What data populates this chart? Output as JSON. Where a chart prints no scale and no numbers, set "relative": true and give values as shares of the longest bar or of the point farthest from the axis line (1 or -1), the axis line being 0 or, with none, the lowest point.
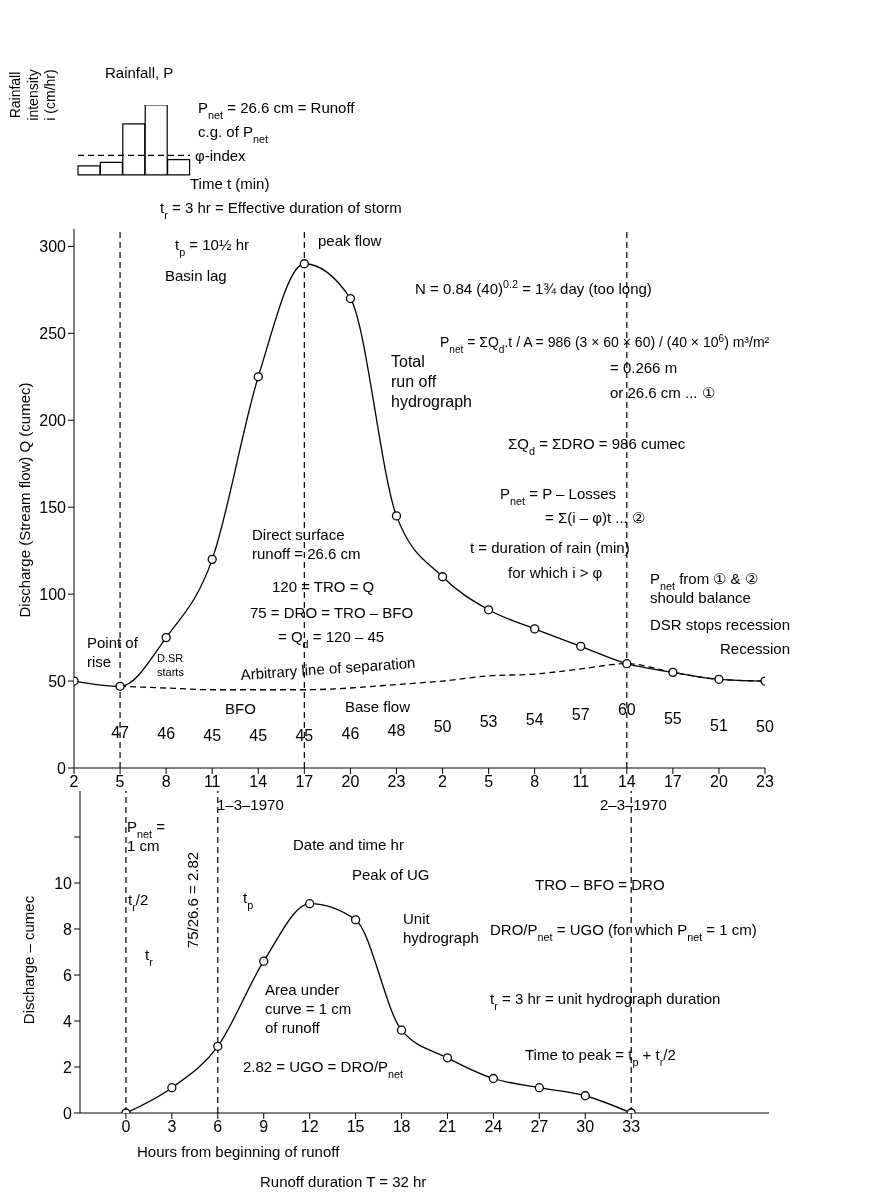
{
  "chart_data": [
    {
      "type": "bar",
      "relative": true,
      "xlabel": "Time t (min)",
      "ylabel": "Rainfall intensity i (cm/hr)",
      "categories": [
        null,
        null,
        null,
        null,
        null
      ],
      "values": [
        0.13,
        0.18,
        0.73,
        1,
        0.22
      ],
      "color": "#ffffff",
      "ref_lines": [
        {
          "axis": "y",
          "value": 0.28,
          "label": "φ-index",
          "line_style": "dashed"
        }
      ],
      "annotations": [
        "Rainfall, P",
        "P$_{net}$ = 26.6 cm = Runoff",
        "c.g. of P$_{net}$"
      ]
    },
    {
      "type": "line",
      "xlabel": "Date and time hr",
      "ylabel": "Discharge (Stream flow) Q (cumec)",
      "xlim": [
        "1970-03-01T02:00",
        "1970-03-02T23:00"
      ],
      "ylim": [
        0,
        310
      ],
      "xticks": [
        {
          "value": "1970-03-01T02:00",
          "label": "2"
        },
        {
          "value": "1970-03-01T05:00",
          "label": "5"
        },
        {
          "value": "1970-03-01T08:00",
          "label": "8"
        },
        {
          "value": "1970-03-01T11:00",
          "label": "11"
        },
        {
          "value": "1970-03-01T14:00",
          "label": "14"
        },
        {
          "value": "1970-03-01T17:00",
          "label": "17"
        },
        {
          "value": "1970-03-01T20:00",
          "label": "20"
        },
        {
          "value": "1970-03-01T23:00",
          "label": "23"
        },
        {
          "value": "1970-03-02T02:00",
          "label": "2"
        },
        {
          "value": "1970-03-02T05:00",
          "label": "5"
        },
        {
          "value": "1970-03-02T08:00",
          "label": "8"
        },
        {
          "value": "1970-03-02T11:00",
          "label": "11"
        },
        {
          "value": "1970-03-02T14:00",
          "label": "14"
        },
        {
          "value": "1970-03-02T17:00",
          "label": "17"
        },
        {
          "value": "1970-03-02T20:00",
          "label": "20"
        },
        {
          "value": "1970-03-02T23:00",
          "label": "23"
        }
      ],
      "yticks": [
        0,
        50,
        100,
        150,
        200,
        250,
        300
      ],
      "grid": false,
      "legend": false,
      "series": [
        {
          "color": "#000000",
          "marker": "circle",
          "line_style": "solid",
          "x": [
            "1970-03-01T02:00",
            "1970-03-01T05:00",
            "1970-03-01T08:00",
            "1970-03-01T11:00",
            "1970-03-01T14:00",
            "1970-03-01T17:00",
            "1970-03-01T20:00",
            "1970-03-01T23:00",
            "1970-03-02T02:00",
            "1970-03-02T05:00",
            "1970-03-02T08:00",
            "1970-03-02T11:00",
            "1970-03-02T14:00",
            "1970-03-02T17:00",
            "1970-03-02T20:00",
            "1970-03-02T23:00"
          ],
          "values": [
            50,
            47,
            75,
            120,
            225,
            290,
            270,
            145,
            110,
            91,
            80,
            70,
            60,
            55,
            51,
            50
          ]
        },
        {
          "color": "#000000",
          "marker": "none",
          "line_style": "dashed",
          "data_labels": true,
          "x": [
            "1970-03-01T05:00",
            "1970-03-01T08:00",
            "1970-03-01T11:00",
            "1970-03-01T14:00",
            "1970-03-01T17:00",
            "1970-03-01T20:00",
            "1970-03-01T23:00",
            "1970-03-02T02:00",
            "1970-03-02T05:00",
            "1970-03-02T08:00",
            "1970-03-02T11:00",
            "1970-03-02T14:00",
            "1970-03-02T17:00",
            "1970-03-02T20:00",
            "1970-03-02T23:00"
          ],
          "values": [
            47,
            46,
            45,
            45,
            45,
            46,
            48,
            50,
            53,
            54,
            57,
            60,
            55,
            51,
            50
          ]
        }
      ],
      "ref_lines": [
        {
          "axis": "x",
          "value": "1970-03-01T05:00",
          "line_style": "dashed"
        },
        {
          "axis": "x",
          "value": "1970-03-01T17:00",
          "line_style": "dashed"
        },
        {
          "axis": "x",
          "value": "1970-03-02T14:00",
          "line_style": "dashed"
        }
      ],
      "annotations": [
        "t$_{r}$ = 3 hr = Effective duration of storm",
        "t$_{p}$ = 10½ hr",
        "Basin lag",
        "peak flow",
        "N = 0.84 (40)$^{0.2}$ = 1¾ day (too long)",
        "P$_{net}$ = ΣQ$_{d}$.t / A = 986 (3 × 60 × 60) / (40 × 10$^{6}$) m³/m²",
        "= 0.266 m",
        "or 26.6 cm ... ①",
        "Total run off hydrograph",
        "ΣQ$_{d}$ = ΣDRO = 986 cumec",
        "P$_{net}$ = P – Losses",
        "= Σ(i – φ)t ... ②",
        "t = duration of rain (min)",
        "for which i > φ",
        "P$_{net}$ from ① & ② should balance",
        "DSR stops recession",
        "Recession",
        "Direct surface runoff = 26.6 cm",
        "120 = TRO = Q",
        "75 = DRO = TRO – BFO",
        "= Q$_{d}$ = 120 – 45",
        "Point of rise",
        "D.SR starts",
        "Arbitrary line of separation",
        "BFO",
        "Base flow",
        "1–3–1970",
        "2–3–1970"
      ]
    },
    {
      "type": "line",
      "xlabel": "Hours from beginning of runoff",
      "ylabel": "Discharge – cumec",
      "xlim": [
        -3,
        42
      ],
      "ylim": [
        0,
        14
      ],
      "xticks": [
        0,
        3,
        6,
        9,
        12,
        15,
        18,
        21,
        24,
        27,
        30,
        33
      ],
      "yticks": [
        0,
        2,
        4,
        6,
        8,
        10,
        {
          "value": 12,
          "label": null
        }
      ],
      "grid": false,
      "legend": false,
      "marker": "circle",
      "x": [
        0,
        3,
        6,
        9,
        12,
        15,
        18,
        21,
        24,
        27,
        30,
        33
      ],
      "series": [
        {
          "color": "#000000",
          "values": [
            0,
            1.1,
            2.9,
            6.6,
            9.1,
            8.4,
            3.6,
            2.4,
            1.5,
            1.1,
            0.75,
            0
          ]
        }
      ],
      "ref_lines": [
        {
          "axis": "x",
          "value": 0,
          "line_style": "dashed"
        },
        {
          "axis": "x",
          "value": 6,
          "line_style": "dashed"
        },
        {
          "axis": "x",
          "value": 33,
          "line_style": "dashed"
        }
      ],
      "annotations": [
        "P$_{net}$ = 1 cm",
        "t$_{r}$/2",
        "t$_{r}$",
        "t$_{p}$",
        "75/26.6 = 2.82",
        "Peak of UG",
        "Unit hydrograph",
        "Area under curve = 1 cm of runoff",
        "2.82 = UGO = DRO/P$_{net}$",
        "TRO – BFO = DRO",
        "DRO/P$_{net}$ = UGO (for which P$_{net}$ = 1 cm)",
        "t$_{r}$ = 3 hr = unit hydrograph duration",
        "Time to peak = t$_{p}$ + t$_{r}$/2",
        "Runoff duration T = 32 hr"
      ]
    }
  ]
}
